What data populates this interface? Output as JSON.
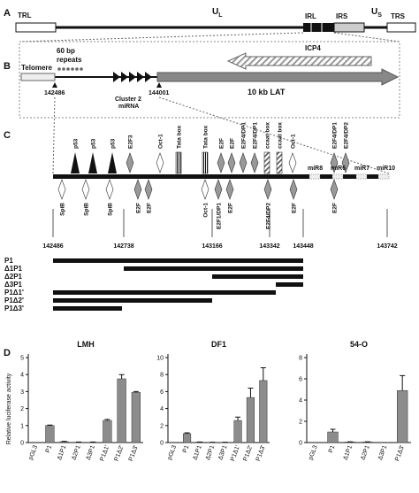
{
  "panel_labels": [
    "A",
    "B",
    "C",
    "D"
  ],
  "panel_a": {
    "trl": "TRL",
    "ul": {
      "main": "U",
      "sub": "L"
    },
    "irl": "IRL",
    "irs": "IRS",
    "us": {
      "main": "U",
      "sub": "S"
    },
    "trs": "TRS"
  },
  "panel_b": {
    "telomere": "Telomere",
    "repeats": [
      "60 bp",
      "repeats"
    ],
    "start": "142486",
    "mirna": [
      "Cluster 2",
      "miRNA"
    ],
    "end": "144001",
    "lat": "10 kb LAT",
    "icp4": "ICP4"
  },
  "panel_c": {
    "above": [
      "p53",
      "p53",
      "p53",
      "E2F3",
      "Oct-1",
      "Tata box",
      "Tata box",
      "E2F",
      "E2F",
      "E2F4/DP1",
      "E2F4/DP1",
      "ccaat box",
      "ccaat box",
      "Oct-1",
      "E2F4/DP1",
      "E2F4/DP2"
    ],
    "below": [
      "SpiB",
      "SpiB",
      "SpiB",
      "E2F",
      "E2F",
      "Oct-1",
      "E2F1/DP1",
      "E2F",
      "E2F4/DP2",
      "E2F",
      "E2F"
    ],
    "mirs": [
      "miR8",
      "miR6",
      "miR7",
      "miR10"
    ],
    "coords": [
      "142486",
      "142738",
      "143166",
      "143342",
      "143448",
      "143742"
    ],
    "constructs": [
      "P1",
      "Δ1P1",
      "Δ2P1",
      "Δ3P1",
      "P1Δ1'",
      "P1Δ2'",
      "P1Δ3'"
    ]
  },
  "chart_data": [
    {
      "type": "bar",
      "title": "LMH",
      "ylabel": "Relative luciferase activity",
      "color": "#8c8c8c",
      "categories": [
        "pGL3",
        "P1",
        "Δ1P1",
        "Δ2P1",
        "Δ3P1",
        "P1Δ1'",
        "P1Δ2'",
        "P1Δ3'"
      ],
      "values": [
        0,
        1.0,
        0.05,
        0.02,
        0.02,
        1.3,
        3.75,
        2.95
      ],
      "errors": [
        0,
        0.03,
        0.02,
        0.01,
        0.01,
        0.06,
        0.25,
        0.05
      ],
      "ylim": [
        0,
        5
      ],
      "yticks": [
        0,
        1,
        2,
        3,
        4,
        5
      ]
    },
    {
      "type": "bar",
      "title": "DF1",
      "color": "#8c8c8c",
      "categories": [
        "pGL3",
        "P1",
        "Δ1P1",
        "Δ2P1",
        "Δ3P1",
        "P1Δ1'",
        "P1Δ2'",
        "P1Δ3'"
      ],
      "values": [
        0,
        1.05,
        0.05,
        0.03,
        0.03,
        2.6,
        5.3,
        7.3
      ],
      "errors": [
        0,
        0.1,
        0.02,
        0.01,
        0.01,
        0.4,
        1.1,
        1.5
      ],
      "ylim": [
        0,
        10
      ],
      "yticks": [
        0,
        2,
        4,
        6,
        8,
        10
      ]
    },
    {
      "type": "bar",
      "title": "54-O",
      "color": "#8c8c8c",
      "categories": [
        "pGL3",
        "P1",
        "Δ1P1",
        "Δ2P1",
        "Δ3P1",
        "P1Δ3'"
      ],
      "values": [
        0,
        1.0,
        0.05,
        0.05,
        0,
        4.9
      ],
      "errors": [
        0,
        0.25,
        0.02,
        0.02,
        0,
        1.4
      ],
      "ylim": [
        0,
        8
      ],
      "yticks": [
        0,
        2,
        4,
        6,
        8
      ]
    }
  ]
}
